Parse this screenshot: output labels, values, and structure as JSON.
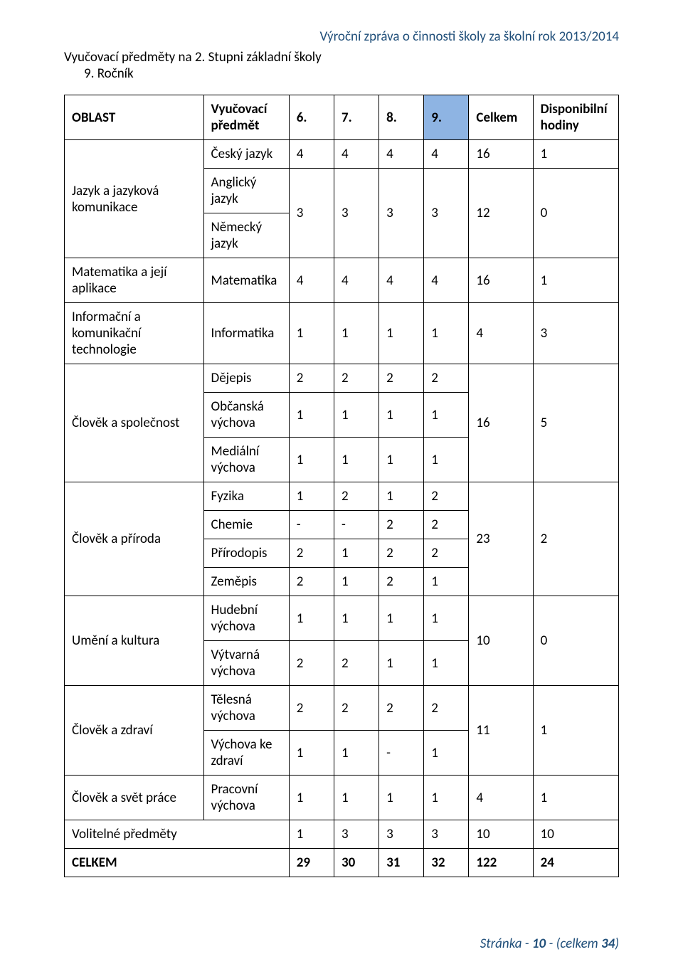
{
  "headerRight": "Výroční zpráva o činnosti školy za školní rok 2013/2014",
  "intro": {
    "line1": "Vyučovací předměty na 2. Stupni základní školy",
    "line2": "9. Ročník"
  },
  "columns": {
    "oblast": "OBLAST",
    "predmet": "Vyučovací předmět",
    "g6": "6.",
    "g7": "7.",
    "g8": "8.",
    "g9": "9.",
    "celkem": "Celkem",
    "disp": "Disponibilní hodiny"
  },
  "colors": {
    "headerText": "#1f4e79",
    "highlightCell": "#8eb4e3",
    "border": "#000000",
    "background": "#ffffff"
  },
  "fonts": {
    "base_pt": 14,
    "family": "Calibri"
  },
  "rows": [
    {
      "oblast": "Jazyk a jazyková komunikace",
      "subjects": [
        {
          "name": "Český jazyk",
          "g6": "4",
          "g7": "4",
          "g8": "4",
          "g9": "4",
          "celkem": "16",
          "disp": "1"
        },
        {
          "name": "Anglický jazyk",
          "g6": "3",
          "g7": "3",
          "g8": "3",
          "g9": "3",
          "celkem": "12",
          "disp": "0",
          "merge_with_next": true
        },
        {
          "name": "Německý jazyk"
        }
      ]
    },
    {
      "oblast": "Matematika a její aplikace",
      "subjects": [
        {
          "name": "Matematika",
          "g6": "4",
          "g7": "4",
          "g8": "4",
          "g9": "4",
          "celkem": "16",
          "disp": "1"
        }
      ]
    },
    {
      "oblast": "Informační a komunikační technologie",
      "subjects": [
        {
          "name": "Informatika",
          "g6": "1",
          "g7": "1",
          "g8": "1",
          "g9": "1",
          "celkem": "4",
          "disp": "3"
        }
      ]
    },
    {
      "oblast": "Člověk a společnost",
      "subjects": [
        {
          "name": "Dějepis",
          "g6": "2",
          "g7": "2",
          "g8": "2",
          "g9": "2"
        },
        {
          "name": "Občanská výchova",
          "g6": "1",
          "g7": "1",
          "g8": "1",
          "g9": "1"
        },
        {
          "name": "Mediální výchova",
          "g6": "1",
          "g7": "1",
          "g8": "1",
          "g9": "1"
        }
      ],
      "group_celkem": "16",
      "group_disp": "5"
    },
    {
      "oblast": "Člověk a příroda",
      "subjects": [
        {
          "name": "Fyzika",
          "g6": "1",
          "g7": "2",
          "g8": "1",
          "g9": "2"
        },
        {
          "name": "Chemie",
          "g6": "-",
          "g7": "-",
          "g8": "2",
          "g9": "2"
        },
        {
          "name": "Přírodopis",
          "g6": "2",
          "g7": "1",
          "g8": "2",
          "g9": "2"
        },
        {
          "name": "Zeměpis",
          "g6": "2",
          "g7": "1",
          "g8": "2",
          "g9": "1"
        }
      ],
      "group_celkem": "23",
      "group_disp": "2"
    },
    {
      "oblast": "Umění a kultura",
      "subjects": [
        {
          "name": "Hudební výchova",
          "g6": "1",
          "g7": "1",
          "g8": "1",
          "g9": "1"
        },
        {
          "name": "Výtvarná výchova",
          "g6": "2",
          "g7": "2",
          "g8": "1",
          "g9": "1"
        }
      ],
      "group_celkem": "10",
      "group_disp": "0"
    },
    {
      "oblast": "Člověk a zdraví",
      "subjects": [
        {
          "name": "Tělesná výchova",
          "g6": "2",
          "g7": "2",
          "g8": "2",
          "g9": "2"
        },
        {
          "name": "Výchova ke zdraví",
          "g6": "1",
          "g7": "1",
          "g8": "-",
          "g9": "1"
        }
      ],
      "group_celkem": "11",
      "group_disp": "1"
    },
    {
      "oblast": "Člověk a svět práce",
      "subjects": [
        {
          "name": "Pracovní výchova",
          "g6": "1",
          "g7": "1",
          "g8": "1",
          "g9": "1",
          "celkem": "4",
          "disp": "1"
        }
      ]
    }
  ],
  "volitelne": {
    "label": "Volitelné předměty",
    "g6": "1",
    "g7": "3",
    "g8": "3",
    "g9": "3",
    "celkem": "10",
    "disp": "10"
  },
  "celkem": {
    "label": "CELKEM",
    "g6": "29",
    "g7": "30",
    "g8": "31",
    "g9": "32",
    "celkem": "122",
    "disp": "24"
  },
  "footer": {
    "prefix": "Stránka - ",
    "page": "10",
    "suffix": " - (celkem ",
    "total": "34",
    "close": ")"
  }
}
